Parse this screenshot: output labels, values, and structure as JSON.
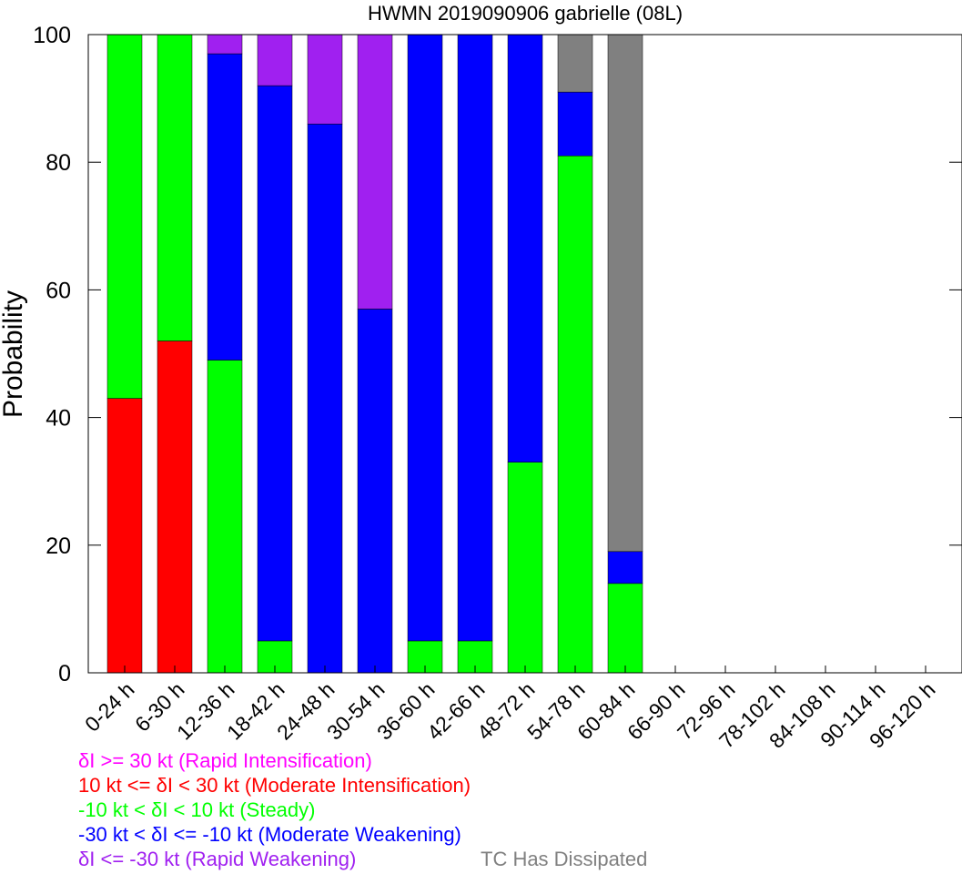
{
  "chart_data": {
    "type": "bar",
    "stacked": true,
    "title": "HWMN 2019090906 gabrielle (08L)",
    "xlabel": "",
    "ylabel": "Probability",
    "ylim": [
      0,
      100
    ],
    "yticks": [
      0,
      20,
      40,
      60,
      80,
      100
    ],
    "grid": false,
    "categories": [
      "0-24 h",
      "6-30 h",
      "12-36 h",
      "18-42 h",
      "24-48 h",
      "30-54 h",
      "36-60 h",
      "42-66 h",
      "48-72 h",
      "54-78 h",
      "60-84 h",
      "66-90 h",
      "72-96 h",
      "78-102 h",
      "84-108 h",
      "90-114 h",
      "96-120 h"
    ],
    "series": [
      {
        "key": "rapid_intensification",
        "color": "#ff00ff",
        "values": [
          0,
          0,
          0,
          0,
          0,
          0,
          0,
          0,
          0,
          0,
          0,
          0,
          0,
          0,
          0,
          0,
          0
        ]
      },
      {
        "key": "moderate_intensification",
        "color": "#ff0000",
        "values": [
          43,
          52,
          0,
          0,
          0,
          0,
          0,
          0,
          0,
          0,
          0,
          0,
          0,
          0,
          0,
          0,
          0
        ]
      },
      {
        "key": "steady",
        "color": "#00ff00",
        "values": [
          57,
          48,
          49,
          5,
          0,
          0,
          5,
          5,
          33,
          81,
          14,
          0,
          0,
          0,
          0,
          0,
          0
        ]
      },
      {
        "key": "moderate_weakening",
        "color": "#0000ff",
        "values": [
          0,
          0,
          48,
          87,
          86,
          57,
          95,
          95,
          67,
          10,
          5,
          0,
          0,
          0,
          0,
          0,
          0
        ]
      },
      {
        "key": "rapid_weakening",
        "color": "#a020f0",
        "values": [
          0,
          0,
          3,
          8,
          14,
          43,
          0,
          0,
          0,
          0,
          0,
          0,
          0,
          0,
          0,
          0,
          0
        ]
      },
      {
        "key": "dissipated",
        "color": "#808080",
        "values": [
          0,
          0,
          0,
          0,
          0,
          0,
          0,
          0,
          0,
          9,
          81,
          0,
          0,
          0,
          0,
          0,
          0
        ]
      }
    ],
    "legend": [
      {
        "text": "δI >= 30 kt (Rapid Intensification)",
        "color": "#ff00ff"
      },
      {
        "text": "10 kt <= δI < 30 kt (Moderate Intensification)",
        "color": "#ff0000"
      },
      {
        "text": "-10 kt < δI < 10 kt (Steady)",
        "color": "#00ff00"
      },
      {
        "text": "-30 kt < δI <= -10 kt (Moderate Weakening)",
        "color": "#0000ff"
      },
      {
        "text": "δI <= -30 kt (Rapid Weakening)",
        "color": "#a020f0"
      }
    ],
    "legend_extra": {
      "text": "TC Has Dissipated",
      "color": "#808080"
    },
    "legend_placement": "bottom-left"
  }
}
